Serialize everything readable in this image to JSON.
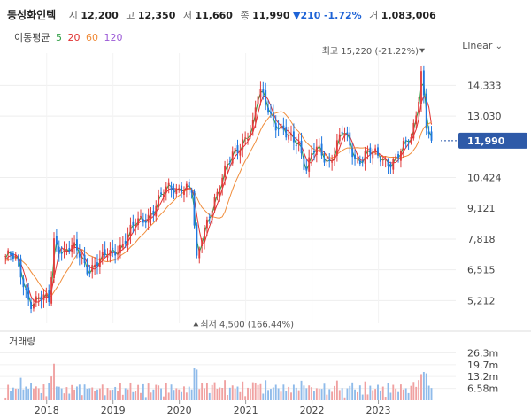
{
  "header": {
    "stock_name": "동성화인텍",
    "open_label": "시",
    "open": "12,200",
    "high_label": "고",
    "high": "12,350",
    "low_label": "저",
    "low": "11,660",
    "close_label": "종",
    "close": "11,990",
    "change": "▼210",
    "change_pct": "-1.72%",
    "volume_label": "거",
    "volume": "1,083,006"
  },
  "legend": {
    "title": "이동평균",
    "items": [
      {
        "label": "5",
        "color": "#2f9e44"
      },
      {
        "label": "20",
        "color": "#e03131"
      },
      {
        "label": "60",
        "color": "#f08c3a"
      },
      {
        "label": "120",
        "color": "#9b59d6"
      }
    ]
  },
  "scale_label": "Linear",
  "volume_title": "거래량",
  "chart_data": [
    {
      "type": "candlestick",
      "title": "동성화인텍 price",
      "x_ticks": [
        "2018",
        "2019",
        "2020",
        "2021",
        "2022",
        "2023"
      ],
      "x_range": [
        2017.35,
        2024.1
      ],
      "y_ticks": [
        5212,
        6515,
        7818,
        9121,
        10424,
        13030,
        14333
      ],
      "y_tick_labels": [
        "5,212",
        "6,515",
        "7,818",
        "9,121",
        "10,424",
        "13,030",
        "14,333"
      ],
      "ylim": [
        4250,
        15700
      ],
      "up_color": "#e23c3c",
      "down_color": "#1f78e0",
      "current_price_label": "11,990",
      "current_price": 11990,
      "max_label": "최고 15,220 (-21.22%)",
      "max": {
        "t": 2023.66,
        "price": 15220
      },
      "min_label": "최저 4,500 (166.44%)",
      "min": {
        "t": 2020.25,
        "price": 4500
      },
      "close_anchors": [
        [
          2017.38,
          7100
        ],
        [
          2017.55,
          6800
        ],
        [
          2017.75,
          5250
        ],
        [
          2017.92,
          5150
        ],
        [
          2018.05,
          5150
        ],
        [
          2018.1,
          7900
        ],
        [
          2018.28,
          7300
        ],
        [
          2018.45,
          7250
        ],
        [
          2018.62,
          6700
        ],
        [
          2018.85,
          6850
        ],
        [
          2019.05,
          7500
        ],
        [
          2019.25,
          8000
        ],
        [
          2019.45,
          8700
        ],
        [
          2019.65,
          9300
        ],
        [
          2019.85,
          9900
        ],
        [
          2020.05,
          10200
        ],
        [
          2020.2,
          9700
        ],
        [
          2020.25,
          6500
        ],
        [
          2020.33,
          7800
        ],
        [
          2020.45,
          9100
        ],
        [
          2020.65,
          10200
        ],
        [
          2020.82,
          11600
        ],
        [
          2020.95,
          12100
        ],
        [
          2021.1,
          12300
        ],
        [
          2021.2,
          14100
        ],
        [
          2021.32,
          13700
        ],
        [
          2021.45,
          12700
        ],
        [
          2021.62,
          12000
        ],
        [
          2021.8,
          12100
        ],
        [
          2021.9,
          10800
        ],
        [
          2022.05,
          11500
        ],
        [
          2022.25,
          11200
        ],
        [
          2022.45,
          12300
        ],
        [
          2022.65,
          11200
        ],
        [
          2022.82,
          11600
        ],
        [
          2023.0,
          11100
        ],
        [
          2023.15,
          11200
        ],
        [
          2023.35,
          11500
        ],
        [
          2023.5,
          12000
        ],
        [
          2023.6,
          13800
        ],
        [
          2023.65,
          15200
        ],
        [
          2023.72,
          12800
        ],
        [
          2023.8,
          11990
        ]
      ],
      "series": [
        {
          "name": "MA5",
          "color": "#2f9e44"
        },
        {
          "name": "MA20",
          "color": "#e03131"
        },
        {
          "name": "MA60",
          "color": "#f08c3a"
        },
        {
          "name": "MA120",
          "color": "#9b59d6"
        }
      ]
    },
    {
      "type": "bar",
      "title": "거래량",
      "y_ticks": [
        6580000,
        13200000,
        19700000,
        26300000
      ],
      "y_tick_labels": [
        "6.58m",
        "13.2m",
        "19.7m",
        "26.3m"
      ],
      "ylim": [
        0,
        28000000
      ],
      "up_color": "#f0a1a1",
      "down_color": "#8fbbea"
    }
  ]
}
